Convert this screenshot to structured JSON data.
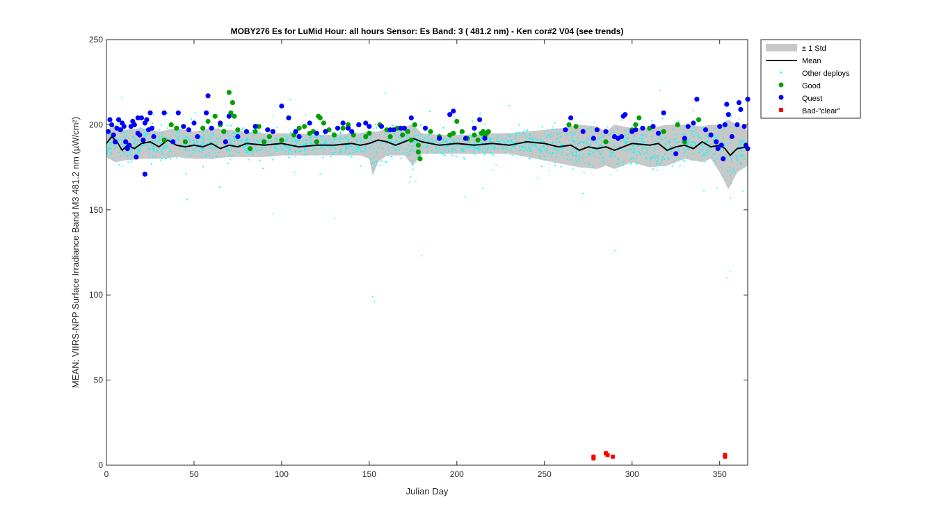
{
  "chart_data": {
    "type": "scatter",
    "title": "MOBY276   Es for LuMid  Hour: all hours  Sensor: Es Band: 3 ( 481.2 nm)  - Ken cor#2 V04 (see trends)",
    "xlabel": "Julian Day",
    "ylabel": "MEAN: VIIRS-NPP Surface Irradiance Band M3 481.2 nm (µW/cm²)",
    "xlim": [
      0,
      366
    ],
    "ylim": [
      0,
      250
    ],
    "xticks": [
      0,
      50,
      100,
      150,
      200,
      250,
      300,
      350
    ],
    "yticks": [
      0,
      50,
      100,
      150,
      200,
      250
    ],
    "grid": false,
    "legend_position": "outside-right-top",
    "colors": {
      "std_band": "#c8c8c8",
      "mean": "#000000",
      "other": "#00ffff",
      "good": "#00a000",
      "quest": "#0000ff",
      "bad": "#ff0000"
    },
    "legend": [
      {
        "key": "std",
        "label": "± 1 Std"
      },
      {
        "key": "mean",
        "label": "Mean"
      },
      {
        "key": "other",
        "label": "Other deploys"
      },
      {
        "key": "good",
        "label": "Good"
      },
      {
        "key": "quest",
        "label": "Quest"
      },
      {
        "key": "bad",
        "label": "Bad-\"clear\""
      }
    ],
    "series": [
      {
        "name": "± 1 Std",
        "kind": "band",
        "x": [
          0,
          5,
          10,
          20,
          30,
          40,
          50,
          60,
          70,
          80,
          90,
          100,
          110,
          120,
          130,
          140,
          145,
          150,
          152,
          155,
          160,
          170,
          175,
          180,
          190,
          200,
          210,
          220,
          230,
          240,
          250,
          260,
          270,
          280,
          285,
          290,
          300,
          310,
          320,
          330,
          340,
          345,
          350,
          355,
          360,
          366
        ],
        "lower": [
          181,
          178,
          179,
          180,
          180,
          181,
          180,
          180,
          181,
          181,
          181,
          182,
          182,
          182,
          182,
          182,
          182,
          180,
          170,
          178,
          182,
          182,
          176,
          183,
          183,
          183,
          183,
          183,
          183,
          181,
          179,
          177,
          175,
          174,
          176,
          174,
          178,
          175,
          176,
          180,
          178,
          180,
          172,
          162,
          172,
          176
        ],
        "upper": [
          196,
          200,
          197,
          198,
          196,
          198,
          196,
          198,
          197,
          196,
          195,
          195,
          195,
          194,
          194,
          195,
          195,
          196,
          196,
          196,
          198,
          199,
          200,
          195,
          194,
          194,
          194,
          195,
          195,
          196,
          197,
          198,
          200,
          199,
          196,
          200,
          198,
          198,
          200,
          200,
          199,
          200,
          200,
          203,
          200,
          197
        ]
      },
      {
        "name": "Mean",
        "kind": "line",
        "x": [
          0,
          3,
          6,
          9,
          12,
          16,
          20,
          25,
          30,
          35,
          40,
          45,
          50,
          55,
          60,
          65,
          70,
          75,
          80,
          90,
          100,
          110,
          120,
          130,
          140,
          145,
          150,
          155,
          160,
          165,
          170,
          175,
          180,
          190,
          200,
          210,
          220,
          230,
          240,
          250,
          258,
          265,
          270,
          275,
          280,
          285,
          290,
          295,
          300,
          310,
          315,
          320,
          325,
          330,
          335,
          340,
          345,
          350,
          353,
          356,
          360,
          366
        ],
        "y": [
          189,
          193,
          190,
          185,
          188,
          186,
          189,
          190,
          187,
          191,
          188,
          187,
          188,
          187,
          189,
          186,
          188,
          187,
          189,
          188,
          189,
          187,
          188,
          188,
          189,
          188,
          189,
          191,
          190,
          188,
          190,
          192,
          190,
          188,
          189,
          188,
          189,
          188,
          190,
          189,
          187,
          188,
          185,
          187,
          186,
          187,
          185,
          187,
          189,
          188,
          189,
          185,
          187,
          188,
          186,
          190,
          187,
          188,
          186,
          182,
          186,
          187
        ]
      },
      {
        "name": "Good",
        "kind": "scatter",
        "points": [
          [
            33,
            191
          ],
          [
            37,
            200
          ],
          [
            40,
            198
          ],
          [
            45,
            190
          ],
          [
            55,
            198
          ],
          [
            58,
            202
          ],
          [
            62,
            205
          ],
          [
            65,
            200
          ],
          [
            67,
            196
          ],
          [
            70,
            219
          ],
          [
            71,
            207
          ],
          [
            72,
            213
          ],
          [
            73,
            205
          ],
          [
            75,
            197
          ],
          [
            82,
            186
          ],
          [
            85,
            196
          ],
          [
            87,
            199
          ],
          [
            90,
            190
          ],
          [
            93,
            193
          ],
          [
            95,
            196
          ],
          [
            100,
            191
          ],
          [
            107,
            194
          ],
          [
            110,
            198
          ],
          [
            113,
            199
          ],
          [
            116,
            195
          ],
          [
            118,
            196
          ],
          [
            120,
            190
          ],
          [
            121,
            205
          ],
          [
            122,
            204
          ],
          [
            124,
            201
          ],
          [
            127,
            197
          ],
          [
            130,
            194
          ],
          [
            135,
            198
          ],
          [
            138,
            200
          ],
          [
            141,
            194
          ],
          [
            144,
            200
          ],
          [
            148,
            193
          ],
          [
            150,
            195
          ],
          [
            156,
            200
          ],
          [
            160,
            197
          ],
          [
            162,
            193
          ],
          [
            166,
            198
          ],
          [
            169,
            194
          ],
          [
            172,
            196
          ],
          [
            174,
            191
          ],
          [
            176,
            200
          ],
          [
            178,
            188
          ],
          [
            178,
            184
          ],
          [
            179,
            180
          ],
          [
            185,
            196
          ],
          [
            190,
            193
          ],
          [
            196,
            194
          ],
          [
            198,
            195
          ],
          [
            200,
            202
          ],
          [
            203,
            196
          ],
          [
            206,
            192
          ],
          [
            210,
            194
          ],
          [
            212,
            191
          ],
          [
            214,
            195
          ],
          [
            215,
            196
          ],
          [
            216,
            193
          ],
          [
            217,
            195
          ],
          [
            218,
            196
          ],
          [
            264,
            200
          ],
          [
            268,
            199
          ],
          [
            285,
            190
          ],
          [
            300,
            197
          ],
          [
            302,
            200
          ],
          [
            304,
            204
          ],
          [
            310,
            198
          ],
          [
            318,
            196
          ],
          [
            326,
            200
          ],
          [
            330,
            190
          ],
          [
            338,
            203
          ]
        ]
      },
      {
        "name": "Quest",
        "kind": "scatter",
        "points": [
          [
            1,
            196
          ],
          [
            2,
            203
          ],
          [
            3,
            200
          ],
          [
            4,
            194
          ],
          [
            5,
            190
          ],
          [
            6,
            198
          ],
          [
            7,
            203
          ],
          [
            8,
            197
          ],
          [
            9,
            201
          ],
          [
            10,
            199
          ],
          [
            11,
            190
          ],
          [
            12,
            186
          ],
          [
            13,
            188
          ],
          [
            14,
            199
          ],
          [
            15,
            202
          ],
          [
            16,
            200
          ],
          [
            17,
            181
          ],
          [
            18,
            204
          ],
          [
            18,
            195
          ],
          [
            19,
            194
          ],
          [
            20,
            204
          ],
          [
            21,
            191
          ],
          [
            22,
            201
          ],
          [
            22,
            171
          ],
          [
            23,
            203
          ],
          [
            24,
            197
          ],
          [
            25,
            207
          ],
          [
            26,
            198
          ],
          [
            27,
            193
          ],
          [
            33,
            207
          ],
          [
            38,
            190
          ],
          [
            41,
            207
          ],
          [
            44,
            199
          ],
          [
            47,
            197
          ],
          [
            50,
            201
          ],
          [
            52,
            193
          ],
          [
            57,
            207
          ],
          [
            58,
            217
          ],
          [
            60,
            198
          ],
          [
            65,
            201
          ],
          [
            68,
            190
          ],
          [
            70,
            205
          ],
          [
            75,
            193
          ],
          [
            80,
            196
          ],
          [
            85,
            199
          ],
          [
            92,
            197
          ],
          [
            95,
            196
          ],
          [
            100,
            211
          ],
          [
            104,
            204
          ],
          [
            108,
            196
          ],
          [
            110,
            193
          ],
          [
            116,
            201
          ],
          [
            120,
            195
          ],
          [
            125,
            196
          ],
          [
            132,
            198
          ],
          [
            135,
            201
          ],
          [
            138,
            198
          ],
          [
            140,
            196
          ],
          [
            144,
            200
          ],
          [
            148,
            201
          ],
          [
            150,
            199
          ],
          [
            157,
            199
          ],
          [
            162,
            197
          ],
          [
            164,
            197
          ],
          [
            168,
            198
          ],
          [
            170,
            198
          ],
          [
            174,
            204
          ],
          [
            182,
            198
          ],
          [
            190,
            192
          ],
          [
            196,
            206
          ],
          [
            198,
            208
          ],
          [
            205,
            192
          ],
          [
            210,
            198
          ],
          [
            213,
            203
          ],
          [
            216,
            192
          ],
          [
            262,
            197
          ],
          [
            265,
            204
          ],
          [
            272,
            196
          ],
          [
            278,
            192
          ],
          [
            280,
            197
          ],
          [
            285,
            196
          ],
          [
            290,
            193
          ],
          [
            292,
            192
          ],
          [
            294,
            193
          ],
          [
            295,
            205
          ],
          [
            296,
            206
          ],
          [
            300,
            196
          ],
          [
            302,
            197
          ],
          [
            306,
            198
          ],
          [
            312,
            199
          ],
          [
            315,
            195
          ],
          [
            318,
            207
          ],
          [
            325,
            183
          ],
          [
            330,
            192
          ],
          [
            332,
            199
          ],
          [
            335,
            201
          ],
          [
            337,
            215
          ],
          [
            342,
            197
          ],
          [
            345,
            194
          ],
          [
            348,
            190
          ],
          [
            349,
            186
          ],
          [
            350,
            199
          ],
          [
            351,
            188
          ],
          [
            352,
            180
          ],
          [
            353,
            200
          ],
          [
            354,
            212
          ],
          [
            355,
            206
          ],
          [
            357,
            193
          ],
          [
            360,
            200
          ],
          [
            361,
            213
          ],
          [
            362,
            209
          ],
          [
            364,
            199
          ],
          [
            365,
            188
          ],
          [
            366,
            186
          ],
          [
            366,
            215
          ]
        ]
      },
      {
        "name": "Bad-\"clear\"",
        "kind": "scatter",
        "points": [
          [
            278,
            4
          ],
          [
            278,
            5
          ],
          [
            285,
            7
          ],
          [
            286,
            6
          ],
          [
            289,
            5
          ],
          [
            353,
            6
          ],
          [
            353,
            5
          ]
        ]
      }
    ],
    "other_deploys_note": "dense cloud of small cyan points, mostly 175–205 µW/cm², sparse outliers 140–230, a few near 97 at day 152"
  }
}
